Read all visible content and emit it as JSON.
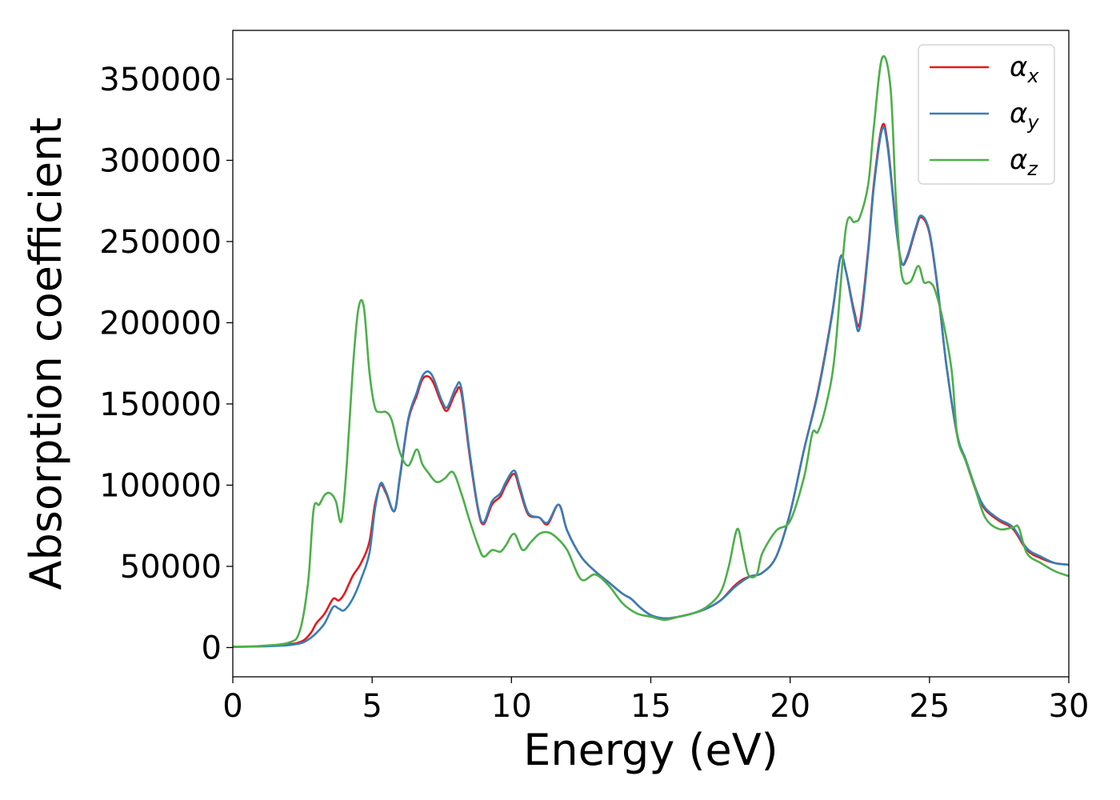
{
  "chart_data": {
    "type": "line",
    "title": "",
    "xlabel": "Energy (eV)",
    "ylabel": "Absorption coefficient",
    "xlim": [
      0,
      30
    ],
    "ylim": [
      -18000,
      380000
    ],
    "xticks": [
      0,
      5,
      10,
      15,
      20,
      25,
      30
    ],
    "yticks": [
      0,
      50000,
      100000,
      150000,
      200000,
      250000,
      300000,
      350000
    ],
    "grid": false,
    "legend_position": "top-right",
    "series": [
      {
        "name": "αx",
        "label_base": "α",
        "label_sub": "x",
        "color": "#e41a1c",
        "x": [
          0,
          1,
          2,
          2.5,
          2.8,
          3.0,
          3.3,
          3.6,
          3.8,
          4.0,
          4.3,
          4.6,
          4.9,
          5.1,
          5.3,
          5.5,
          5.8,
          6.0,
          6.3,
          6.6,
          6.8,
          7.0,
          7.2,
          7.5,
          7.7,
          8.0,
          8.2,
          8.5,
          8.8,
          9.0,
          9.3,
          9.6,
          9.8,
          10.1,
          10.3,
          10.6,
          11.0,
          11.3,
          11.7,
          12.0,
          12.5,
          13.0,
          13.5,
          14.0,
          14.3,
          14.6,
          15.0,
          15.5,
          16.0,
          16.5,
          17.0,
          17.5,
          18.0,
          18.3,
          18.6,
          19.0,
          19.5,
          20.0,
          20.5,
          21.0,
          21.5,
          21.8,
          22.0,
          22.3,
          22.5,
          22.8,
          23.0,
          23.3,
          23.5,
          23.8,
          24.0,
          24.2,
          24.5,
          24.7,
          25.0,
          25.3,
          25.6,
          26.0,
          26.3,
          26.7,
          27.0,
          27.5,
          28.0,
          28.5,
          29.0,
          29.5,
          30.0
        ],
        "y": [
          500,
          800,
          2000,
          4000,
          9000,
          15000,
          21000,
          30000,
          29000,
          33000,
          44000,
          52000,
          65000,
          88000,
          100000,
          95000,
          84000,
          105000,
          140000,
          155000,
          165000,
          167000,
          163000,
          150000,
          146000,
          157000,
          157000,
          118000,
          85000,
          76000,
          88000,
          93000,
          100000,
          107000,
          97000,
          82000,
          80000,
          76000,
          88000,
          72000,
          56000,
          47000,
          40000,
          33000,
          30000,
          25000,
          20000,
          18000,
          19000,
          21000,
          24000,
          29000,
          38000,
          42000,
          44000,
          46000,
          56000,
          83000,
          122000,
          158000,
          205000,
          240000,
          232000,
          207000,
          200000,
          245000,
          285000,
          321000,
          310000,
          260000,
          237000,
          240000,
          257000,
          265000,
          255000,
          220000,
          175000,
          130000,
          115000,
          95000,
          85000,
          78000,
          73000,
          60000,
          55000,
          52000,
          51000
        ]
      },
      {
        "name": "αy",
        "label_base": "α",
        "label_sub": "y",
        "color": "#377eb8",
        "x": [
          0,
          1,
          2,
          2.5,
          2.8,
          3.0,
          3.3,
          3.6,
          3.8,
          4.0,
          4.3,
          4.6,
          4.9,
          5.1,
          5.3,
          5.5,
          5.8,
          6.0,
          6.3,
          6.6,
          6.8,
          7.0,
          7.2,
          7.5,
          7.7,
          8.0,
          8.2,
          8.5,
          8.8,
          9.0,
          9.3,
          9.6,
          9.8,
          10.1,
          10.3,
          10.6,
          11.0,
          11.3,
          11.7,
          12.0,
          12.5,
          13.0,
          13.5,
          14.0,
          14.3,
          14.6,
          15.0,
          15.5,
          16.0,
          16.5,
          17.0,
          17.5,
          18.0,
          18.3,
          18.6,
          19.0,
          19.5,
          20.0,
          20.5,
          21.0,
          21.5,
          21.8,
          22.0,
          22.3,
          22.5,
          22.8,
          23.0,
          23.3,
          23.5,
          23.8,
          24.0,
          24.2,
          24.5,
          24.7,
          25.0,
          25.3,
          25.6,
          26.0,
          26.3,
          26.7,
          27.0,
          27.5,
          28.0,
          28.5,
          29.0,
          29.5,
          30.0
        ],
        "y": [
          400,
          700,
          1500,
          3000,
          6000,
          9000,
          15000,
          25000,
          24000,
          23000,
          30000,
          42000,
          58000,
          85000,
          101000,
          96000,
          84000,
          106000,
          141000,
          157000,
          167000,
          170000,
          166000,
          152000,
          148000,
          160000,
          160000,
          120000,
          86000,
          77000,
          90000,
          95000,
          102000,
          109000,
          99000,
          83000,
          80000,
          77000,
          88000,
          72000,
          56000,
          47000,
          40000,
          33000,
          30000,
          25000,
          20000,
          18000,
          19000,
          21000,
          24000,
          29000,
          37000,
          41000,
          44000,
          46000,
          56000,
          83000,
          122000,
          157000,
          204000,
          240000,
          232000,
          205000,
          197000,
          243000,
          283000,
          319000,
          308000,
          259000,
          237000,
          241000,
          258000,
          266000,
          256000,
          221000,
          175000,
          131000,
          116000,
          96000,
          86000,
          79000,
          74000,
          61000,
          56000,
          52000,
          51000
        ]
      },
      {
        "name": "αz",
        "label_base": "α",
        "label_sub": "z",
        "color": "#4daf4a",
        "x": [
          0,
          1,
          2,
          2.4,
          2.7,
          2.9,
          3.1,
          3.3,
          3.5,
          3.7,
          3.9,
          4.1,
          4.3,
          4.5,
          4.7,
          4.9,
          5.1,
          5.3,
          5.5,
          5.7,
          6.0,
          6.3,
          6.6,
          6.8,
          7.0,
          7.3,
          7.6,
          7.9,
          8.2,
          8.5,
          8.8,
          9.0,
          9.3,
          9.6,
          9.8,
          10.1,
          10.4,
          10.7,
          11.0,
          11.3,
          11.6,
          12.0,
          12.5,
          13.0,
          13.5,
          14.0,
          14.5,
          15.0,
          15.5,
          16.0,
          16.5,
          17.0,
          17.5,
          17.8,
          18.1,
          18.3,
          18.5,
          18.8,
          19.0,
          19.5,
          20.0,
          20.5,
          20.8,
          21.0,
          21.3,
          21.6,
          22.0,
          22.3,
          22.5,
          22.8,
          23.0,
          23.3,
          23.6,
          23.8,
          24.0,
          24.3,
          24.6,
          24.8,
          25.0,
          25.2,
          25.5,
          25.8,
          26.0,
          26.3,
          26.6,
          27.0,
          27.5,
          28.0,
          28.2,
          28.5,
          29.0,
          29.5,
          30.0
        ],
        "y": [
          500,
          1000,
          3000,
          10000,
          40000,
          85000,
          88000,
          94000,
          95000,
          90000,
          78000,
          115000,
          170000,
          208000,
          210000,
          170000,
          148000,
          145000,
          145000,
          140000,
          120000,
          112000,
          122000,
          113000,
          108000,
          102000,
          104000,
          108000,
          95000,
          78000,
          63000,
          56000,
          60000,
          59000,
          63000,
          70000,
          60000,
          65000,
          70000,
          71000,
          68000,
          60000,
          42000,
          45000,
          38000,
          27000,
          21000,
          19000,
          17000,
          19000,
          21000,
          25000,
          34000,
          50000,
          73000,
          60000,
          45000,
          45000,
          58000,
          72000,
          78000,
          105000,
          132000,
          133000,
          150000,
          180000,
          258000,
          262000,
          265000,
          285000,
          320000,
          363000,
          345000,
          275000,
          230000,
          225000,
          235000,
          225000,
          225000,
          220000,
          200000,
          170000,
          130000,
          115000,
          100000,
          80000,
          73000,
          74000,
          74000,
          58000,
          52000,
          47000,
          44000
        ]
      }
    ]
  }
}
